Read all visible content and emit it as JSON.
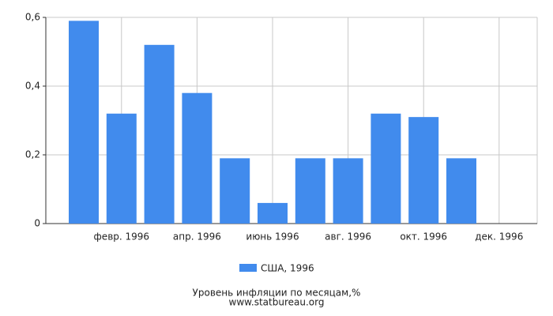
{
  "chart_data": {
    "type": "bar",
    "categories": [
      null,
      "февр. 1996",
      null,
      "апр. 1996",
      null,
      "июнь 1996",
      null,
      "авг. 1996",
      null,
      "окт. 1996",
      null,
      "дек. 1996"
    ],
    "series": [
      {
        "name": "США, 1996",
        "color": "#418bed",
        "values": [
          0.59,
          0.32,
          0.52,
          0.38,
          0.19,
          0.06,
          0.19,
          0.19,
          0.32,
          0.31,
          0.19,
          null
        ]
      }
    ],
    "ylim": [
      0,
      0.6
    ],
    "yticks": [
      0,
      {
        "value": 0.2,
        "label": "0,2"
      },
      {
        "value": 0.4,
        "label": "0,4"
      },
      {
        "value": 0.6,
        "label": "0,6"
      }
    ],
    "grid": true,
    "title": "Уровень инфляции по месяцам,%",
    "subtitle": "www.statbureau.org"
  }
}
